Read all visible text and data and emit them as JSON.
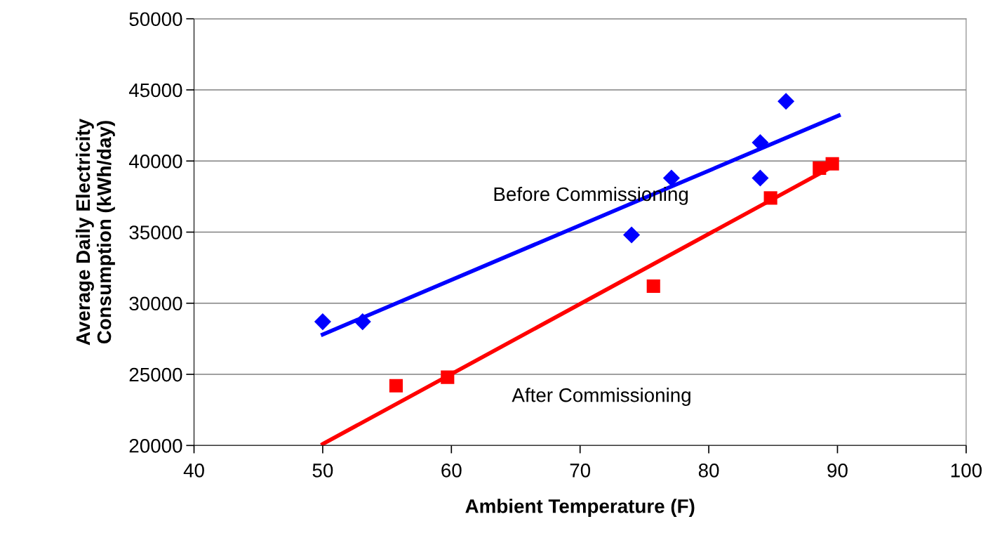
{
  "chart_data": {
    "type": "scatter",
    "xlabel": "Ambient Temperature (F)",
    "ylabel": "Average Daily Electricity\nConsumption (kWh/day)",
    "xlim": [
      40,
      100
    ],
    "xticks": [
      40,
      50,
      60,
      70,
      80,
      90,
      100
    ],
    "ylim": [
      20000,
      50000
    ],
    "yticks": [
      20000,
      25000,
      30000,
      35000,
      40000,
      45000,
      50000
    ],
    "grid": "y",
    "series": [
      {
        "marker": "diamond",
        "color": "#0000ff",
        "x": [
          50,
          53.1,
          74,
          77.1,
          84,
          84,
          86
        ],
        "values": [
          28700,
          28700,
          34800,
          38800,
          41300,
          38800,
          44200
        ]
      },
      {
        "marker": "square",
        "color": "#ff0000",
        "x": [
          55.7,
          59.7,
          75.7,
          84.8,
          88.6,
          89.6
        ],
        "values": [
          24200,
          24800,
          31200,
          37400,
          39500,
          39800
        ]
      },
      {
        "type": "line",
        "marker": "none",
        "color": "#0000ff",
        "x": [
          50,
          90.1
        ],
        "values": [
          27800,
          43200
        ]
      },
      {
        "type": "line",
        "marker": "none",
        "color": "#ff0000",
        "x": [
          50,
          89.8
        ],
        "values": [
          20100,
          39700
        ]
      }
    ],
    "annotations": [
      "Before Commissioning",
      "After Commissioning"
    ]
  }
}
